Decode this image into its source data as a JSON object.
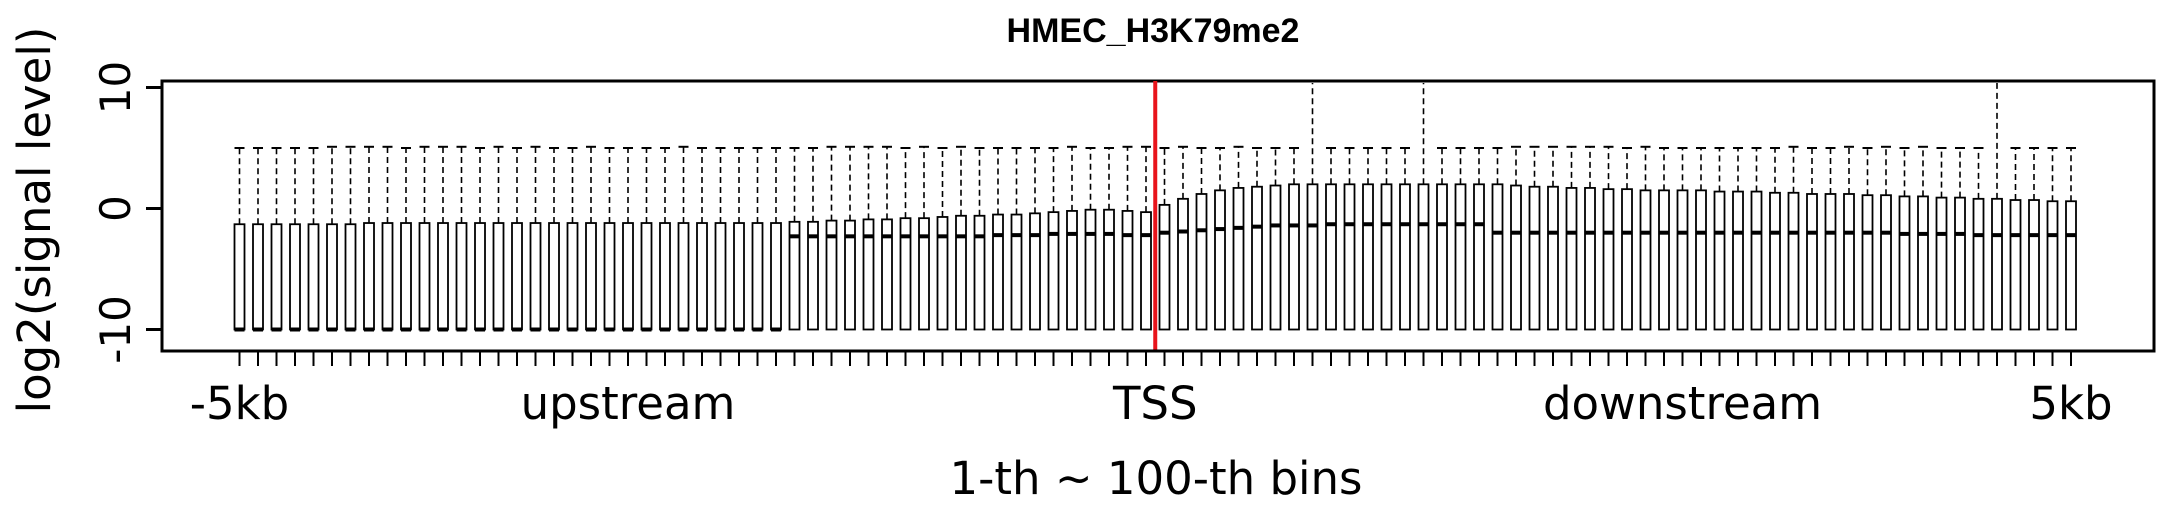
{
  "chart_data": {
    "type": "boxplot",
    "title": "HMEC_H3K79me2",
    "xlabel": "1-th ~ 100-th bins",
    "ylabel": "log2(signal level)",
    "ylim": [
      -11.5,
      10.5
    ],
    "y_ticks": [
      10,
      0,
      -10
    ],
    "x_range": [
      1,
      100
    ],
    "region_labels": [
      {
        "text": "-5kb",
        "bin": 1
      },
      {
        "text": "upstream",
        "bin": 22
      },
      {
        "text": "TSS",
        "bin": 50.5
      },
      {
        "text": "downstream",
        "bin": 79
      },
      {
        "text": "5kb",
        "bin": 100
      }
    ],
    "tss_line": {
      "bin": 50.5,
      "color": "#e8141b"
    },
    "box_color": "#000000",
    "whisker_style": "dashed",
    "boxes": {
      "whisker_low": -10,
      "lower_quartile": -10,
      "medians": [
        -10,
        -10,
        -10,
        -10,
        -10,
        -10,
        -10,
        -10,
        -10,
        -10,
        -10,
        -10,
        -10,
        -10,
        -10,
        -10,
        -10,
        -10,
        -10,
        -10,
        -10,
        -10,
        -10,
        -10,
        -10,
        -10,
        -10,
        -10,
        -10,
        -10,
        -2.3,
        -2.3,
        -2.3,
        -2.3,
        -2.3,
        -2.3,
        -2.3,
        -2.3,
        -2.3,
        -2.3,
        -2.3,
        -2.2,
        -2.2,
        -2.2,
        -2.1,
        -2.1,
        -2.1,
        -2.1,
        -2.2,
        -2.2,
        -2,
        -1.9,
        -1.8,
        -1.7,
        -1.6,
        -1.5,
        -1.4,
        -1.4,
        -1.4,
        -1.3,
        -1.3,
        -1.3,
        -1.3,
        -1.3,
        -1.3,
        -1.3,
        -1.3,
        -1.3,
        -2,
        -2,
        -2,
        -2,
        -2,
        -2,
        -2,
        -2,
        -2,
        -2,
        -2,
        -2,
        -2,
        -2,
        -2,
        -2,
        -2,
        -2,
        -2,
        -2,
        -2,
        -2,
        -2.1,
        -2.1,
        -2.1,
        -2.1,
        -2.2,
        -2.2,
        -2.2,
        -2.2,
        -2.2,
        -2.2
      ],
      "upper_quartiles": [
        -1.3,
        -1.3,
        -1.3,
        -1.3,
        -1.3,
        -1.3,
        -1.3,
        -1.2,
        -1.2,
        -1.2,
        -1.2,
        -1.2,
        -1.2,
        -1.2,
        -1.2,
        -1.2,
        -1.2,
        -1.2,
        -1.2,
        -1.2,
        -1.2,
        -1.2,
        -1.2,
        -1.2,
        -1.2,
        -1.2,
        -1.2,
        -1.2,
        -1.2,
        -1.2,
        -1.1,
        -1.1,
        -1.0,
        -1.0,
        -0.9,
        -0.9,
        -0.8,
        -0.8,
        -0.7,
        -0.6,
        -0.6,
        -0.5,
        -0.5,
        -0.4,
        -0.3,
        -0.2,
        -0.1,
        -0.1,
        -0.2,
        -0.3,
        0.3,
        0.8,
        1.2,
        1.5,
        1.7,
        1.8,
        1.9,
        2.0,
        2.0,
        2.0,
        2.0,
        2.0,
        2.0,
        2.0,
        2.0,
        2.0,
        2.0,
        2.0,
        2.0,
        1.9,
        1.8,
        1.8,
        1.7,
        1.7,
        1.6,
        1.6,
        1.5,
        1.5,
        1.5,
        1.5,
        1.4,
        1.4,
        1.4,
        1.3,
        1.3,
        1.2,
        1.2,
        1.2,
        1.1,
        1.1,
        1.0,
        1.0,
        0.9,
        0.9,
        0.8,
        0.8,
        0.7,
        0.7,
        0.6,
        0.6
      ],
      "whisker_highs": [
        5.0,
        5.0,
        5.0,
        5.0,
        5.0,
        5.1,
        5.1,
        5.1,
        5.1,
        5.0,
        5.1,
        5.1,
        5.1,
        5.0,
        5.1,
        5.0,
        5.1,
        5.0,
        5.0,
        5.1,
        5.0,
        5.0,
        5.0,
        5.0,
        5.1,
        5.0,
        5.0,
        5.0,
        5.0,
        5.0,
        5.0,
        5.0,
        5.1,
        5.1,
        5.1,
        5.1,
        5.0,
        5.1,
        5.0,
        5.1,
        5.0,
        5.0,
        5.0,
        5.0,
        5.0,
        5.1,
        5.0,
        5.0,
        5.1,
        5.1,
        5.0,
        5.1,
        5.0,
        5.0,
        5.1,
        5.0,
        5.0,
        5.0,
        5.0,
        5.0,
        5.0,
        5.0,
        5.0,
        5.0,
        5.0,
        5.0,
        5.0,
        5.0,
        5.0,
        5.1,
        5.1,
        5.1,
        5.1,
        5.1,
        5.1,
        5.0,
        5.1,
        5.0,
        5.0,
        5.0,
        5.0,
        5.0,
        5.0,
        5.0,
        5.1,
        5.0,
        5.0,
        5.1,
        5.0,
        5.1,
        5.0,
        5.1,
        5.0,
        5.0,
        5.0,
        5.0,
        5.0,
        5.0,
        5.0,
        5.0
      ],
      "extended_whiskers": [
        {
          "bin": 59,
          "high": 10.5
        },
        {
          "bin": 65,
          "high": 10.5
        },
        {
          "bin": 96,
          "high": 10.5
        }
      ]
    }
  }
}
